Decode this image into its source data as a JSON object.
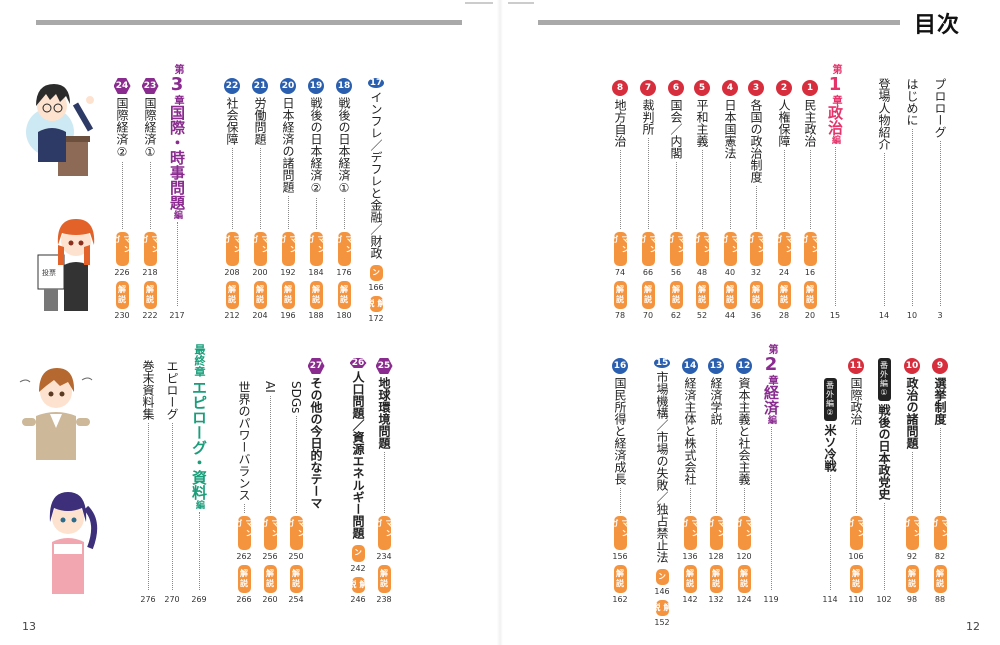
{
  "header": {
    "title": "目次"
  },
  "page_numbers": {
    "left": "13",
    "right": "12"
  },
  "labels": {
    "manga": "マンガ",
    "kaisetsu": "解説"
  },
  "right_top": {
    "prologue": {
      "title": "プロローグ",
      "page": "3"
    },
    "intro": {
      "title": "はじめに",
      "page": "10"
    },
    "characters": {
      "title": "登場人物紹介",
      "page": "14"
    },
    "chapter1": {
      "prefix": "第",
      "num": "1",
      "suffix": "章",
      "name": "政治",
      "hen": "編",
      "page": "15"
    },
    "items": [
      {
        "n": "1",
        "title": "民主政治",
        "manga": "16",
        "kaisetsu": "20"
      },
      {
        "n": "2",
        "title": "人権保障",
        "manga": "24",
        "kaisetsu": "28"
      },
      {
        "n": "3",
        "title": "各国の政治制度",
        "manga": "32",
        "kaisetsu": "36"
      },
      {
        "n": "4",
        "title": "日本国憲法",
        "manga": "40",
        "kaisetsu": "44"
      },
      {
        "n": "5",
        "title": "平和主義",
        "manga": "48",
        "kaisetsu": "52"
      },
      {
        "n": "6",
        "title": "国会／内閣",
        "manga": "56",
        "kaisetsu": "62"
      },
      {
        "n": "7",
        "title": "裁判所",
        "manga": "66",
        "kaisetsu": "70"
      },
      {
        "n": "8",
        "title": "地方自治",
        "manga": "74",
        "kaisetsu": "78"
      }
    ]
  },
  "right_bottom": {
    "items_a": [
      {
        "n": "9",
        "title": "選挙制度",
        "manga": "82",
        "kaisetsu": "88"
      },
      {
        "n": "10",
        "title": "政治の諸問題",
        "manga": "92",
        "kaisetsu": "98"
      }
    ],
    "bangai1": {
      "tag": "番外編①",
      "title": "戦後の日本政党史",
      "page": "102"
    },
    "item11": {
      "n": "11",
      "title": "国際政治",
      "manga": "106",
      "kaisetsu": "110"
    },
    "bangai2": {
      "tag": "番外編②",
      "title": "米ソ冷戦",
      "page": "114"
    },
    "chapter2": {
      "prefix": "第",
      "num": "2",
      "suffix": "章",
      "name": "経済",
      "hen": "編",
      "page": "119"
    },
    "items_b": [
      {
        "n": "12",
        "title": "資本主義と社会主義",
        "manga": "120",
        "kaisetsu": "124"
      },
      {
        "n": "13",
        "title": "経済学説",
        "manga": "128",
        "kaisetsu": "132"
      },
      {
        "n": "14",
        "title": "経済主体と株式会社",
        "manga": "136",
        "kaisetsu": "142"
      },
      {
        "n": "15",
        "title": "市場機構／市場の失敗／独占禁止法",
        "manga": "146",
        "kaisetsu": "152"
      },
      {
        "n": "16",
        "title": "国民所得と経済成長",
        "manga": "156",
        "kaisetsu": "162"
      }
    ]
  },
  "left_top": {
    "items_a": [
      {
        "n": "17",
        "title": "インフレ／デフレと金融／財政",
        "manga": "166",
        "kaisetsu": "172"
      },
      {
        "n": "18",
        "title": "戦後の日本経済①",
        "manga": "176",
        "kaisetsu": "180"
      },
      {
        "n": "19",
        "title": "戦後の日本経済②",
        "manga": "184",
        "kaisetsu": "188"
      },
      {
        "n": "20",
        "title": "日本経済の諸問題",
        "manga": "192",
        "kaisetsu": "196"
      },
      {
        "n": "21",
        "title": "労働問題",
        "manga": "200",
        "kaisetsu": "204"
      },
      {
        "n": "22",
        "title": "社会保障",
        "manga": "208",
        "kaisetsu": "212"
      }
    ],
    "chapter3": {
      "prefix": "第",
      "num": "3",
      "suffix": "章",
      "name": "国際・時事問題",
      "hen": "編",
      "page": "217"
    },
    "items_b": [
      {
        "n": "23",
        "title": "国際経済①",
        "manga": "218",
        "kaisetsu": "222"
      },
      {
        "n": "24",
        "title": "国際経済②",
        "manga": "226",
        "kaisetsu": "230"
      }
    ]
  },
  "left_bottom": {
    "items_a": [
      {
        "n": "25",
        "title": "地球環境問題",
        "manga": "234",
        "kaisetsu": "238"
      },
      {
        "n": "26",
        "title": "人口問題／資源エネルギー問題",
        "manga": "242",
        "kaisetsu": "246"
      }
    ],
    "item27": {
      "n": "27",
      "title": "その他の今日的なテーマ"
    },
    "sub27": [
      {
        "title": "SDGs",
        "manga": "250",
        "kaisetsu": "254"
      },
      {
        "title": "AI",
        "manga": "256",
        "kaisetsu": "260"
      },
      {
        "title": "世界のパワーバランス",
        "manga": "262",
        "kaisetsu": "266"
      }
    ],
    "final": {
      "name": "最終章",
      "title": "エピローグ・資料",
      "hen": "編",
      "page": "269"
    },
    "epilogue": {
      "title": "エピローグ",
      "page": "270"
    },
    "appendix": {
      "title": "巻末資料集",
      "page": "276"
    }
  },
  "colors": {
    "pink": "#e5336b",
    "purple": "#8a2b8f",
    "green": "#1a9e7a",
    "blue": "#2a5fb0",
    "orange": "#f4943f",
    "red": "#d62e3c"
  }
}
